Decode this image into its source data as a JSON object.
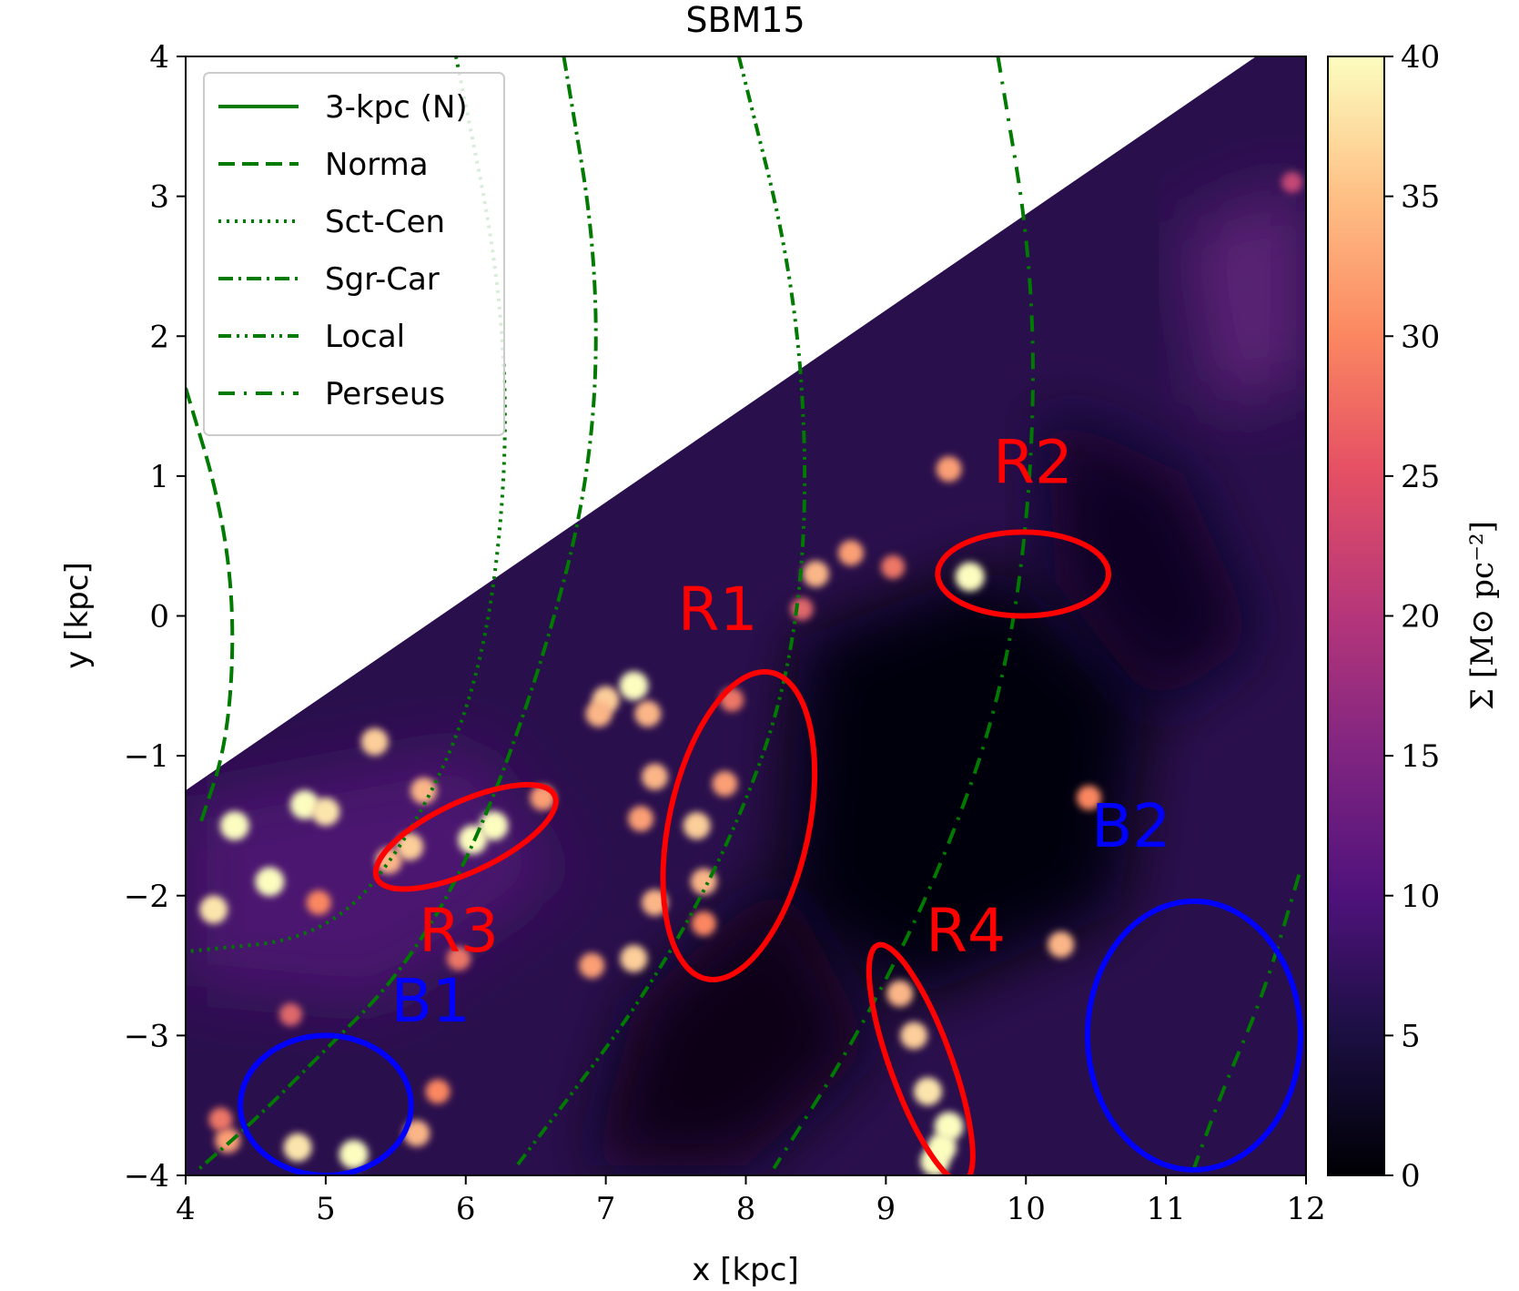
{
  "chart_data": {
    "type": "heatmap",
    "title": "SBM15",
    "xlabel": "x [kpc]",
    "ylabel": "y [kpc]",
    "xlim": [
      4,
      12
    ],
    "ylim": [
      -4,
      4
    ],
    "xticks": [
      "4",
      "5",
      "6",
      "7",
      "8",
      "9",
      "10",
      "11",
      "12"
    ],
    "yticks": [
      "−4",
      "−3",
      "−2",
      "−1",
      "0",
      "1",
      "2",
      "3",
      "4"
    ],
    "colorbar": {
      "label": "Σ [M⊙ pc⁻²]",
      "range": [
        0,
        40
      ],
      "ticks": [
        "0",
        "5",
        "10",
        "15",
        "20",
        "25",
        "30",
        "35",
        "40"
      ],
      "colormap": "magma"
    },
    "legend": {
      "position": "top-left",
      "entries": [
        {
          "label": "3-kpc (N)",
          "style": "solid"
        },
        {
          "label": "Norma",
          "style": "dashed"
        },
        {
          "label": "Sct-Cen",
          "style": "dotted"
        },
        {
          "label": "Sgr-Car",
          "style": "dashdot"
        },
        {
          "label": "Local",
          "style": "dashdotdot"
        },
        {
          "label": "Perseus",
          "style": "longdashdot"
        }
      ]
    },
    "spiral_arms": [
      {
        "name": "Norma",
        "color": "#007a00",
        "points": [
          [
            4.0,
            1.63
          ],
          [
            4.25,
            0.8
          ],
          [
            4.35,
            0.0
          ],
          [
            4.3,
            -0.9
          ],
          [
            4.1,
            -1.5
          ]
        ]
      },
      {
        "name": "Sct-Cen",
        "color": "#007a00",
        "points": [
          [
            5.93,
            4.0
          ],
          [
            6.25,
            2.4
          ],
          [
            6.3,
            1.0
          ],
          [
            6.1,
            -0.5
          ],
          [
            5.6,
            -1.6
          ],
          [
            5.0,
            -2.3
          ],
          [
            4.0,
            -2.4
          ]
        ]
      },
      {
        "name": "Sgr-Car",
        "color": "#007a00",
        "points": [
          [
            6.7,
            4.0
          ],
          [
            6.95,
            2.5
          ],
          [
            6.9,
            1.0
          ],
          [
            6.5,
            -0.5
          ],
          [
            6.0,
            -1.8
          ],
          [
            5.5,
            -2.6
          ],
          [
            5.0,
            -3.1
          ],
          [
            4.5,
            -3.6
          ],
          [
            4.1,
            -3.95
          ]
        ]
      },
      {
        "name": "Local",
        "color": "#007a00",
        "points": [
          [
            7.95,
            4.0
          ],
          [
            8.35,
            2.4
          ],
          [
            8.45,
            0.8
          ],
          [
            8.3,
            -0.5
          ],
          [
            7.9,
            -1.6
          ],
          [
            7.3,
            -2.7
          ],
          [
            6.35,
            -3.95
          ]
        ]
      },
      {
        "name": "Perseus",
        "color": "#007a00",
        "points": [
          [
            9.8,
            4.0
          ],
          [
            10.05,
            2.5
          ],
          [
            10.05,
            1.0
          ],
          [
            9.85,
            -0.5
          ],
          [
            9.4,
            -1.8
          ],
          [
            8.8,
            -3.0
          ],
          [
            8.2,
            -3.95
          ]
        ]
      },
      {
        "name": "Perseus-outer",
        "color": "#007a00",
        "points": [
          [
            11.95,
            -1.85
          ],
          [
            11.7,
            -2.7
          ],
          [
            11.4,
            -3.4
          ],
          [
            11.2,
            -3.95
          ]
        ]
      }
    ],
    "regions": [
      {
        "label": "R1",
        "color": "#ff0000",
        "cx": 7.95,
        "cy": -1.5,
        "rx": 0.5,
        "ry": 1.12,
        "angle": 12,
        "label_at": [
          7.8,
          -0.1
        ]
      },
      {
        "label": "R2",
        "color": "#ff0000",
        "cx": 9.98,
        "cy": 0.3,
        "rx": 0.61,
        "ry": 0.3,
        "angle": 0,
        "label_at": [
          10.05,
          0.95
        ]
      },
      {
        "label": "R3",
        "color": "#ff0000",
        "cx": 6.0,
        "cy": -1.58,
        "rx": 0.7,
        "ry": 0.25,
        "angle": -25,
        "label_at": [
          5.95,
          -2.4
        ]
      },
      {
        "label": "R4",
        "color": "#ff0000",
        "cx": 9.25,
        "cy": -3.2,
        "rx": 0.22,
        "ry": 0.9,
        "angle": -20,
        "label_at": [
          9.57,
          -2.4
        ]
      },
      {
        "label": "B1",
        "color": "#0000ff",
        "cx": 5.0,
        "cy": -3.5,
        "rx": 0.61,
        "ry": 0.5,
        "angle": 0,
        "label_at": [
          5.75,
          -2.9
        ]
      },
      {
        "label": "B2",
        "color": "#0000ff",
        "cx": 11.2,
        "cy": -3.0,
        "rx": 0.76,
        "ry": 0.96,
        "angle": 0,
        "label_at": [
          10.75,
          -1.65
        ]
      }
    ],
    "bright_clumps": [
      {
        "x": 4.35,
        "y": -1.5,
        "v": 40
      },
      {
        "x": 4.6,
        "y": -1.9,
        "v": 40
      },
      {
        "x": 4.2,
        "y": -2.1,
        "v": 38
      },
      {
        "x": 4.85,
        "y": -1.35,
        "v": 40
      },
      {
        "x": 5.0,
        "y": -1.4,
        "v": 38
      },
      {
        "x": 5.35,
        "y": -0.9,
        "v": 36
      },
      {
        "x": 5.7,
        "y": -1.25,
        "v": 34
      },
      {
        "x": 6.2,
        "y": -1.5,
        "v": 40
      },
      {
        "x": 6.05,
        "y": -1.6,
        "v": 40
      },
      {
        "x": 5.6,
        "y": -1.65,
        "v": 36
      },
      {
        "x": 5.45,
        "y": -1.75,
        "v": 34
      },
      {
        "x": 6.55,
        "y": -1.3,
        "v": 32
      },
      {
        "x": 7.2,
        "y": -0.5,
        "v": 40
      },
      {
        "x": 7.0,
        "y": -0.6,
        "v": 36
      },
      {
        "x": 6.95,
        "y": -0.7,
        "v": 34
      },
      {
        "x": 7.3,
        "y": -0.7,
        "v": 34
      },
      {
        "x": 7.35,
        "y": -1.15,
        "v": 34
      },
      {
        "x": 7.25,
        "y": -1.45,
        "v": 32
      },
      {
        "x": 7.35,
        "y": -2.05,
        "v": 34
      },
      {
        "x": 7.2,
        "y": -2.45,
        "v": 36
      },
      {
        "x": 6.9,
        "y": -2.5,
        "v": 32
      },
      {
        "x": 7.65,
        "y": -1.5,
        "v": 36
      },
      {
        "x": 7.7,
        "y": -1.9,
        "v": 34
      },
      {
        "x": 7.85,
        "y": -1.2,
        "v": 32
      },
      {
        "x": 7.7,
        "y": -2.2,
        "v": 30
      },
      {
        "x": 7.9,
        "y": -0.6,
        "v": 28
      },
      {
        "x": 8.5,
        "y": 0.3,
        "v": 34
      },
      {
        "x": 8.75,
        "y": 0.45,
        "v": 32
      },
      {
        "x": 9.05,
        "y": 0.35,
        "v": 28
      },
      {
        "x": 9.6,
        "y": 0.28,
        "v": 40
      },
      {
        "x": 9.45,
        "y": 1.05,
        "v": 32
      },
      {
        "x": 8.4,
        "y": 0.05,
        "v": 26
      },
      {
        "x": 9.1,
        "y": -2.7,
        "v": 34
      },
      {
        "x": 9.2,
        "y": -3.0,
        "v": 36
      },
      {
        "x": 9.3,
        "y": -3.4,
        "v": 38
      },
      {
        "x": 9.4,
        "y": -3.8,
        "v": 40
      },
      {
        "x": 9.45,
        "y": -3.65,
        "v": 40
      },
      {
        "x": 9.35,
        "y": -3.9,
        "v": 40
      },
      {
        "x": 10.25,
        "y": -2.35,
        "v": 34
      },
      {
        "x": 10.45,
        "y": -1.3,
        "v": 30
      },
      {
        "x": 5.95,
        "y": -2.45,
        "v": 28
      },
      {
        "x": 4.8,
        "y": -3.8,
        "v": 38
      },
      {
        "x": 5.2,
        "y": -3.85,
        "v": 40
      },
      {
        "x": 5.65,
        "y": -3.7,
        "v": 34
      },
      {
        "x": 4.3,
        "y": -3.75,
        "v": 32
      },
      {
        "x": 5.8,
        "y": -3.4,
        "v": 30
      },
      {
        "x": 4.75,
        "y": -2.85,
        "v": 26
      },
      {
        "x": 4.95,
        "y": -2.05,
        "v": 30
      },
      {
        "x": 4.25,
        "y": -3.6,
        "v": 28
      },
      {
        "x": 11.9,
        "y": 3.1,
        "v": 22
      }
    ]
  }
}
